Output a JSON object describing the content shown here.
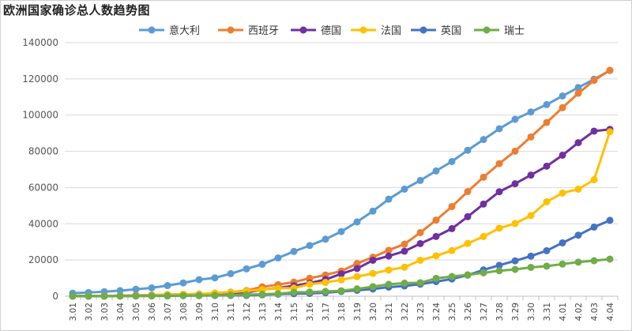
{
  "chart_data": {
    "type": "line",
    "title": "欧洲国家确诊总人数趋势图",
    "xlabel": "",
    "ylabel": "",
    "ylim": [
      0,
      140000
    ],
    "yticks": [
      0,
      20000,
      40000,
      60000,
      80000,
      100000,
      120000,
      140000
    ],
    "categories": [
      "3.01",
      "3.02",
      "3.03",
      "3.04",
      "3.05",
      "3.06",
      "3.07",
      "3.08",
      "3.09",
      "3.10",
      "3.11",
      "3.12",
      "3.13",
      "3.14",
      "3.15",
      "3.16",
      "3.17",
      "3.18",
      "3.19",
      "3.20",
      "3.21",
      "3.22",
      "3.23",
      "3.24",
      "3.25",
      "3.26",
      "3.27",
      "3.28",
      "3.29",
      "3.30",
      "3.31",
      "4.01",
      "4.02",
      "4.03",
      "4.04"
    ],
    "legend_position": "top",
    "series": [
      {
        "name": "意大利",
        "color": "#5b9bd5",
        "values": [
          1694,
          2036,
          2502,
          3089,
          3858,
          4636,
          5883,
          7375,
          9172,
          10149,
          12462,
          15113,
          17660,
          21157,
          24747,
          27980,
          31506,
          35713,
          41035,
          47021,
          53578,
          59138,
          63927,
          69176,
          74386,
          80589,
          86498,
          92472,
          97689,
          101739,
          105792,
          110574,
          115242,
          119827,
          124632
        ]
      },
      {
        "name": "西班牙",
        "color": "#ed7d31",
        "values": [
          84,
          120,
          165,
          222,
          259,
          400,
          500,
          673,
          1073,
          1695,
          2277,
          3146,
          5232,
          6391,
          7798,
          9942,
          11748,
          13910,
          18077,
          21571,
          25374,
          28768,
          35136,
          42058,
          49515,
          57786,
          65719,
          73235,
          80110,
          87956,
          95923,
          104118,
          112065,
          119199,
          124736
        ]
      },
      {
        "name": "德国",
        "color": "#7030a0",
        "values": [
          130,
          159,
          196,
          262,
          482,
          670,
          799,
          1040,
          1176,
          1457,
          1908,
          2078,
          3675,
          4585,
          5795,
          7272,
          9257,
          12327,
          15320,
          19848,
          22213,
          24873,
          29056,
          32986,
          37323,
          43938,
          50871,
          57695,
          62095,
          66885,
          71808,
          77872,
          84794,
          91159,
          92150
        ]
      },
      {
        "name": "法国",
        "color": "#ffc000",
        "values": [
          130,
          191,
          204,
          288,
          380,
          656,
          957,
          1134,
          1217,
          1792,
          2281,
          2876,
          3661,
          4469,
          4499,
          6633,
          7652,
          9043,
          10871,
          12612,
          14459,
          16018,
          19856,
          22304,
          25233,
          29155,
          32964,
          37575,
          40174,
          44550,
          52128,
          56989,
          59105,
          64338,
          90848
        ]
      },
      {
        "name": "英国",
        "color": "#4472c4",
        "values": [
          36,
          40,
          51,
          87,
          116,
          164,
          207,
          274,
          322,
          384,
          459,
          456,
          798,
          1140,
          1391,
          1543,
          1950,
          2626,
          3269,
          3983,
          5018,
          5683,
          6650,
          8077,
          9529,
          11658,
          14543,
          17089,
          19522,
          22141,
          25150,
          29474,
          33718,
          38168,
          41903
        ]
      },
      {
        "name": "瑞士",
        "color": "#70ad47",
        "values": [
          18,
          24,
          37,
          56,
          90,
          209,
          264,
          332,
          374,
          491,
          645,
          858,
          1125,
          1359,
          2200,
          2330,
          2650,
          3010,
          4075,
          5294,
          6575,
          7245,
          7474,
          9877,
          10897,
          11811,
          12928,
          14076,
          14829,
          15922,
          16605,
          17768,
          18827,
          19606,
          20505
        ]
      }
    ]
  }
}
